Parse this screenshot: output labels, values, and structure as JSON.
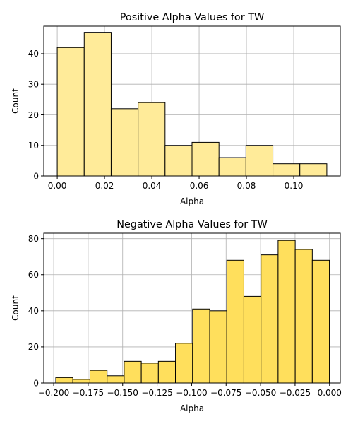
{
  "chart_data": [
    {
      "type": "bar",
      "title": "Positive Alpha Values for TW",
      "xlabel": "Alpha",
      "ylabel": "Count",
      "bar_color": "#ffeb99",
      "xlim": [
        -0.0057,
        0.1197
      ],
      "ylim": [
        0,
        49
      ],
      "x_ticks": [
        0.0,
        0.02,
        0.04,
        0.06,
        0.08,
        0.1
      ],
      "x_tick_labels": [
        "0.00",
        "0.02",
        "0.04",
        "0.06",
        "0.08",
        "0.10"
      ],
      "y_ticks": [
        0,
        10,
        20,
        30,
        40
      ],
      "y_tick_labels": [
        "0",
        "10",
        "20",
        "30",
        "40"
      ],
      "grid": true,
      "bins": [
        {
          "x0": 0.0,
          "x1": 0.0114,
          "count": 42
        },
        {
          "x0": 0.0114,
          "x1": 0.0228,
          "count": 47
        },
        {
          "x0": 0.0228,
          "x1": 0.0342,
          "count": 22
        },
        {
          "x0": 0.0342,
          "x1": 0.0456,
          "count": 24
        },
        {
          "x0": 0.0456,
          "x1": 0.057,
          "count": 10
        },
        {
          "x0": 0.057,
          "x1": 0.0684,
          "count": 11
        },
        {
          "x0": 0.0684,
          "x1": 0.0798,
          "count": 6
        },
        {
          "x0": 0.0798,
          "x1": 0.0912,
          "count": 10
        },
        {
          "x0": 0.0912,
          "x1": 0.1026,
          "count": 4
        },
        {
          "x0": 0.1026,
          "x1": 0.114,
          "count": 4
        }
      ]
    },
    {
      "type": "bar",
      "title": "Negative Alpha Values for TW",
      "xlabel": "Alpha",
      "ylabel": "Count",
      "bar_color": "#ffdf5c",
      "xlim": [
        -0.2072,
        0.0078
      ],
      "ylim": [
        0,
        83
      ],
      "x_ticks": [
        -0.2,
        -0.175,
        -0.15,
        -0.125,
        -0.1,
        -0.075,
        -0.05,
        -0.025,
        0.0
      ],
      "x_tick_labels": [
        "−0.200",
        "−0.175",
        "−0.150",
        "−0.125",
        "−0.100",
        "−0.075",
        "−0.050",
        "−0.025",
        "0.000"
      ],
      "y_ticks": [
        0,
        20,
        40,
        60,
        80
      ],
      "y_tick_labels": [
        "0",
        "20",
        "40",
        "60",
        "80"
      ],
      "grid": true,
      "bins": [
        {
          "x0": -0.1985,
          "x1": -0.1861,
          "count": 3
        },
        {
          "x0": -0.1861,
          "x1": -0.1737,
          "count": 2
        },
        {
          "x0": -0.1737,
          "x1": -0.1613,
          "count": 7
        },
        {
          "x0": -0.1613,
          "x1": -0.1489,
          "count": 4
        },
        {
          "x0": -0.1489,
          "x1": -0.1365,
          "count": 12
        },
        {
          "x0": -0.1365,
          "x1": -0.1241,
          "count": 11
        },
        {
          "x0": -0.1241,
          "x1": -0.1117,
          "count": 12
        },
        {
          "x0": -0.1117,
          "x1": -0.0993,
          "count": 22
        },
        {
          "x0": -0.0993,
          "x1": -0.0869,
          "count": 41
        },
        {
          "x0": -0.0869,
          "x1": -0.0745,
          "count": 40
        },
        {
          "x0": -0.0745,
          "x1": -0.0621,
          "count": 68
        },
        {
          "x0": -0.0621,
          "x1": -0.0497,
          "count": 48
        },
        {
          "x0": -0.0497,
          "x1": -0.0373,
          "count": 71
        },
        {
          "x0": -0.0373,
          "x1": -0.0249,
          "count": 79
        },
        {
          "x0": -0.0249,
          "x1": -0.0125,
          "count": 74
        },
        {
          "x0": -0.0125,
          "x1": -0.0001,
          "count": 68
        }
      ]
    }
  ]
}
